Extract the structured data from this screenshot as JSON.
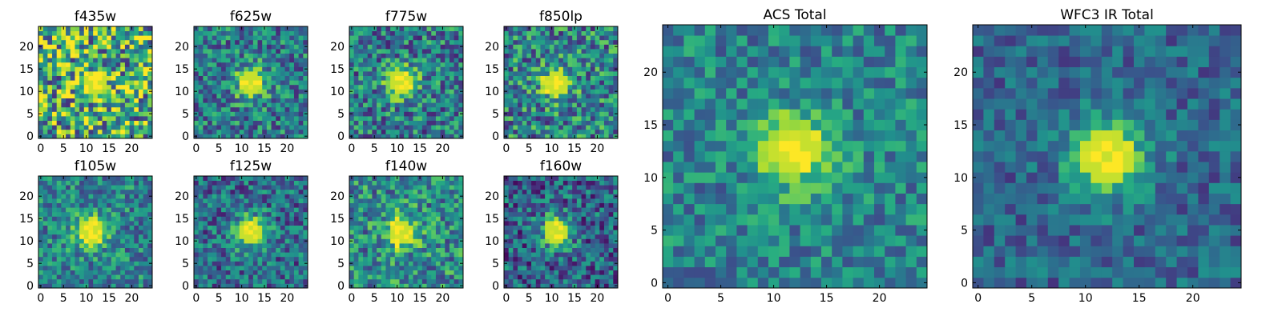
{
  "figure": {
    "background": "#ffffff",
    "colormap": "viridis"
  },
  "chart_data": [
    {
      "type": "heatmap",
      "title": "f435w",
      "xlim": [
        0,
        24
      ],
      "ylim": [
        0,
        24
      ],
      "xticks": [
        "0",
        "5",
        "10",
        "15",
        "20"
      ],
      "yticks": [
        "0",
        "5",
        "10",
        "15",
        "20"
      ],
      "grid": false,
      "center": [
        12,
        12
      ],
      "peak_strength": 0.25,
      "noise": 0.48,
      "background_level": 0.62,
      "seed": 11
    },
    {
      "type": "heatmap",
      "title": "f625w",
      "xlim": [
        0,
        24
      ],
      "ylim": [
        0,
        24
      ],
      "xticks": [
        "0",
        "5",
        "10",
        "15",
        "20"
      ],
      "yticks": [
        "0",
        "5",
        "10",
        "15",
        "20"
      ],
      "grid": false,
      "center": [
        12,
        12
      ],
      "peak_strength": 0.5,
      "noise": 0.3,
      "background_level": 0.42,
      "seed": 23
    },
    {
      "type": "heatmap",
      "title": "f775w",
      "xlim": [
        0,
        24
      ],
      "ylim": [
        0,
        24
      ],
      "xticks": [
        "0",
        "5",
        "10",
        "15",
        "20"
      ],
      "yticks": [
        "0",
        "5",
        "10",
        "15",
        "20"
      ],
      "grid": false,
      "center": [
        11,
        12
      ],
      "peak_strength": 0.55,
      "noise": 0.32,
      "background_level": 0.42,
      "seed": 37
    },
    {
      "type": "heatmap",
      "title": "f850lp",
      "xlim": [
        0,
        24
      ],
      "ylim": [
        0,
        24
      ],
      "xticks": [
        "0",
        "5",
        "10",
        "15",
        "20"
      ],
      "yticks": [
        "0",
        "5",
        "10",
        "15",
        "20"
      ],
      "grid": false,
      "center": [
        11,
        12
      ],
      "peak_strength": 0.45,
      "noise": 0.34,
      "background_level": 0.45,
      "seed": 41
    },
    {
      "type": "heatmap",
      "title": "f105w",
      "xlim": [
        0,
        24
      ],
      "ylim": [
        0,
        24
      ],
      "xticks": [
        "0",
        "5",
        "10",
        "15",
        "20"
      ],
      "yticks": [
        "0",
        "5",
        "10",
        "15",
        "20"
      ],
      "grid": false,
      "center": [
        11,
        12
      ],
      "peak_strength": 0.55,
      "noise": 0.26,
      "background_level": 0.45,
      "seed": 53
    },
    {
      "type": "heatmap",
      "title": "f125w",
      "xlim": [
        0,
        24
      ],
      "ylim": [
        0,
        24
      ],
      "xticks": [
        "0",
        "5",
        "10",
        "15",
        "20"
      ],
      "yticks": [
        "0",
        "5",
        "10",
        "15",
        "20"
      ],
      "grid": false,
      "center": [
        12,
        12
      ],
      "peak_strength": 0.6,
      "noise": 0.28,
      "background_level": 0.36,
      "seed": 61
    },
    {
      "type": "heatmap",
      "title": "f140w",
      "xlim": [
        0,
        24
      ],
      "ylim": [
        0,
        24
      ],
      "xticks": [
        "0",
        "5",
        "10",
        "15",
        "20"
      ],
      "yticks": [
        "0",
        "5",
        "10",
        "15",
        "20"
      ],
      "grid": false,
      "center": [
        11,
        12
      ],
      "peak_strength": 0.5,
      "noise": 0.3,
      "background_level": 0.48,
      "seed": 73
    },
    {
      "type": "heatmap",
      "title": "f160w",
      "xlim": [
        0,
        24
      ],
      "ylim": [
        0,
        24
      ],
      "xticks": [
        "0",
        "5",
        "10",
        "15",
        "20"
      ],
      "yticks": [
        "0",
        "5",
        "10",
        "15",
        "20"
      ],
      "grid": false,
      "center": [
        11,
        12
      ],
      "peak_strength": 0.6,
      "noise": 0.3,
      "background_level": 0.32,
      "seed": 89
    },
    {
      "type": "heatmap",
      "title": "ACS Total",
      "xlim": [
        0,
        24
      ],
      "ylim": [
        0,
        24
      ],
      "xticks": [
        "0",
        "5",
        "10",
        "15",
        "20"
      ],
      "yticks": [
        "0",
        "5",
        "10",
        "15",
        "20"
      ],
      "grid": false,
      "center": [
        12,
        12.5
      ],
      "peak_strength": 0.55,
      "noise": 0.22,
      "background_level": 0.45,
      "seed": 97
    },
    {
      "type": "heatmap",
      "title": "WFC3 IR Total",
      "xlim": [
        0,
        24
      ],
      "ylim": [
        0,
        24
      ],
      "xticks": [
        "0",
        "5",
        "10",
        "15",
        "20"
      ],
      "yticks": [
        "0",
        "5",
        "10",
        "15",
        "20"
      ],
      "grid": false,
      "center": [
        12,
        12
      ],
      "peak_strength": 0.65,
      "noise": 0.18,
      "background_level": 0.33,
      "seed": 103
    }
  ]
}
